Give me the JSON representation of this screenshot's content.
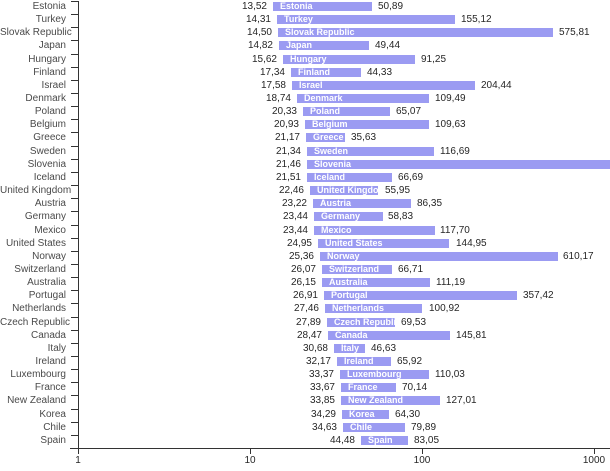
{
  "chart_data": {
    "type": "bar",
    "subtype": "range",
    "orientation": "horizontal",
    "title": "",
    "x_scale": "log",
    "x_range": [
      1,
      1000
    ],
    "x_ticks": [
      "1",
      "10",
      "100",
      "1000"
    ],
    "decimal_separator": ",",
    "bar_color": "#9b9bf2",
    "bar_text_color": "#ffffff",
    "axis_color": "#333333",
    "rows": [
      {
        "country": "Estonia",
        "low": 13.52,
        "high": 50.89,
        "low_label": "13,52",
        "high_label": "50,89",
        "clipped": false
      },
      {
        "country": "Turkey",
        "low": 14.31,
        "high": 155.12,
        "low_label": "14,31",
        "high_label": "155,12",
        "clipped": false
      },
      {
        "country": "Slovak Republic",
        "low": 14.5,
        "high": 575.81,
        "low_label": "14,50",
        "high_label": "575,81",
        "clipped": false
      },
      {
        "country": "Japan",
        "low": 14.82,
        "high": 49.44,
        "low_label": "14,82",
        "high_label": "49,44",
        "clipped": false
      },
      {
        "country": "Hungary",
        "low": 15.62,
        "high": 91.25,
        "low_label": "15,62",
        "high_label": "91,25",
        "clipped": false
      },
      {
        "country": "Finland",
        "low": 17.34,
        "high": 44.33,
        "low_label": "17,34",
        "high_label": "44,33",
        "clipped": false
      },
      {
        "country": "Israel",
        "low": 17.58,
        "high": 204.44,
        "low_label": "17,58",
        "high_label": "204,44",
        "clipped": false
      },
      {
        "country": "Denmark",
        "low": 18.74,
        "high": 109.49,
        "low_label": "18,74",
        "high_label": "109,49",
        "clipped": false
      },
      {
        "country": "Poland",
        "low": 20.33,
        "high": 65.07,
        "low_label": "20,33",
        "high_label": "65,07",
        "clipped": false
      },
      {
        "country": "Belgium",
        "low": 20.93,
        "high": 109.63,
        "low_label": "20,93",
        "high_label": "109,63",
        "clipped": false
      },
      {
        "country": "Greece",
        "low": 21.17,
        "high": 35.63,
        "low_label": "21,17",
        "high_label": "35,63",
        "clipped": false
      },
      {
        "country": "Sweden",
        "low": 21.34,
        "high": 116.69,
        "low_label": "21,34",
        "high_label": "116,69",
        "clipped": false
      },
      {
        "country": "Slovenia",
        "low": 21.46,
        "high": null,
        "low_label": "21,46",
        "high_label": "",
        "clipped": true
      },
      {
        "country": "Iceland",
        "low": 21.51,
        "high": 66.69,
        "low_label": "21,51",
        "high_label": "66,69",
        "clipped": false
      },
      {
        "country": "United Kingdom",
        "low": 22.46,
        "high": 55.95,
        "low_label": "22,46",
        "high_label": "55,95",
        "clipped": false
      },
      {
        "country": "Austria",
        "low": 23.22,
        "high": 86.35,
        "low_label": "23,22",
        "high_label": "86,35",
        "clipped": false
      },
      {
        "country": "Germany",
        "low": 23.44,
        "high": 58.83,
        "low_label": "23,44",
        "high_label": "58,83",
        "clipped": false
      },
      {
        "country": "Mexico",
        "low": 23.44,
        "high": 117.7,
        "low_label": "23,44",
        "high_label": "117,70",
        "clipped": false
      },
      {
        "country": "United States",
        "low": 24.95,
        "high": 144.95,
        "low_label": "24,95",
        "high_label": "144,95",
        "clipped": false
      },
      {
        "country": "Norway",
        "low": 25.36,
        "high": 610.17,
        "low_label": "25,36",
        "high_label": "610,17",
        "clipped": false
      },
      {
        "country": "Switzerland",
        "low": 26.07,
        "high": 66.71,
        "low_label": "26,07",
        "high_label": "66,71",
        "clipped": false
      },
      {
        "country": "Australia",
        "low": 26.15,
        "high": 111.19,
        "low_label": "26,15",
        "high_label": "111,19",
        "clipped": false
      },
      {
        "country": "Portugal",
        "low": 26.91,
        "high": 357.42,
        "low_label": "26,91",
        "high_label": "357,42",
        "clipped": false
      },
      {
        "country": "Netherlands",
        "low": 27.46,
        "high": 100.92,
        "low_label": "27,46",
        "high_label": "100,92",
        "clipped": false
      },
      {
        "country": "Czech Republic",
        "low": 27.89,
        "high": 69.53,
        "low_label": "27,89",
        "high_label": "69,53",
        "clipped": false
      },
      {
        "country": "Canada",
        "low": 28.47,
        "high": 145.81,
        "low_label": "28,47",
        "high_label": "145,81",
        "clipped": false
      },
      {
        "country": "Italy",
        "low": 30.68,
        "high": 46.63,
        "low_label": "30,68",
        "high_label": "46,63",
        "clipped": false
      },
      {
        "country": "Ireland",
        "low": 32.17,
        "high": 65.92,
        "low_label": "32,17",
        "high_label": "65,92",
        "clipped": false
      },
      {
        "country": "Luxembourg",
        "low": 33.37,
        "high": 110.03,
        "low_label": "33,37",
        "high_label": "110,03",
        "clipped": false
      },
      {
        "country": "France",
        "low": 33.67,
        "high": 70.14,
        "low_label": "33,67",
        "high_label": "70,14",
        "clipped": false
      },
      {
        "country": "New Zealand",
        "low": 33.85,
        "high": 127.01,
        "low_label": "33,85",
        "high_label": "127,01",
        "clipped": false
      },
      {
        "country": "Korea",
        "low": 34.29,
        "high": 64.3,
        "low_label": "34,29",
        "high_label": "64,30",
        "clipped": false
      },
      {
        "country": "Chile",
        "low": 34.63,
        "high": 79.89,
        "low_label": "34,63",
        "high_label": "79,89",
        "clipped": false
      },
      {
        "country": "Spain",
        "low": 44.48,
        "high": 83.05,
        "low_label": "44,48",
        "high_label": "83,05",
        "clipped": false
      }
    ]
  }
}
